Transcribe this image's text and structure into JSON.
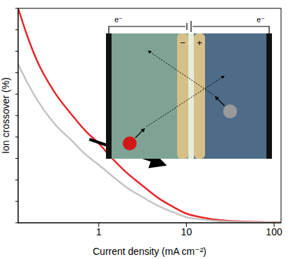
{
  "chart_data": {
    "type": "line",
    "x_label": "Current density (mA cm⁻²)",
    "y_label": "Ion crossover (%)",
    "log": "x",
    "xlim": [
      0.12,
      120
    ],
    "xticks": [
      1,
      10,
      100
    ],
    "ylim": [
      0,
      100
    ],
    "yticks": [
      0,
      10,
      20,
      30,
      40,
      50,
      60,
      70,
      80,
      90,
      100
    ],
    "tick_labels": "x",
    "x": [
      0.12,
      0.15,
      0.2,
      0.3,
      0.5,
      0.7,
      1,
      1.5,
      2,
      3,
      5,
      7,
      10,
      15,
      20,
      30,
      50,
      70,
      100,
      120
    ],
    "series": [
      {
        "color": "#e8262b",
        "values": [
          100,
          88,
          75,
          62,
          50,
          43,
          37,
          29,
          24,
          18,
          11,
          7.5,
          4.3,
          2.5,
          1.6,
          0.9,
          0.5,
          0.3,
          0.2,
          0.15
        ]
      },
      {
        "color": "#c4c4c4",
        "values": [
          74,
          66,
          57,
          47,
          38,
          32,
          27,
          21,
          17,
          12.5,
          7.5,
          5,
          2.6,
          1.6,
          1.0,
          0.6,
          0.3,
          0.2,
          0.1,
          0.08
        ]
      }
    ],
    "annotations": [
      "e⁻",
      "e⁻",
      "−",
      "+"
    ]
  }
}
